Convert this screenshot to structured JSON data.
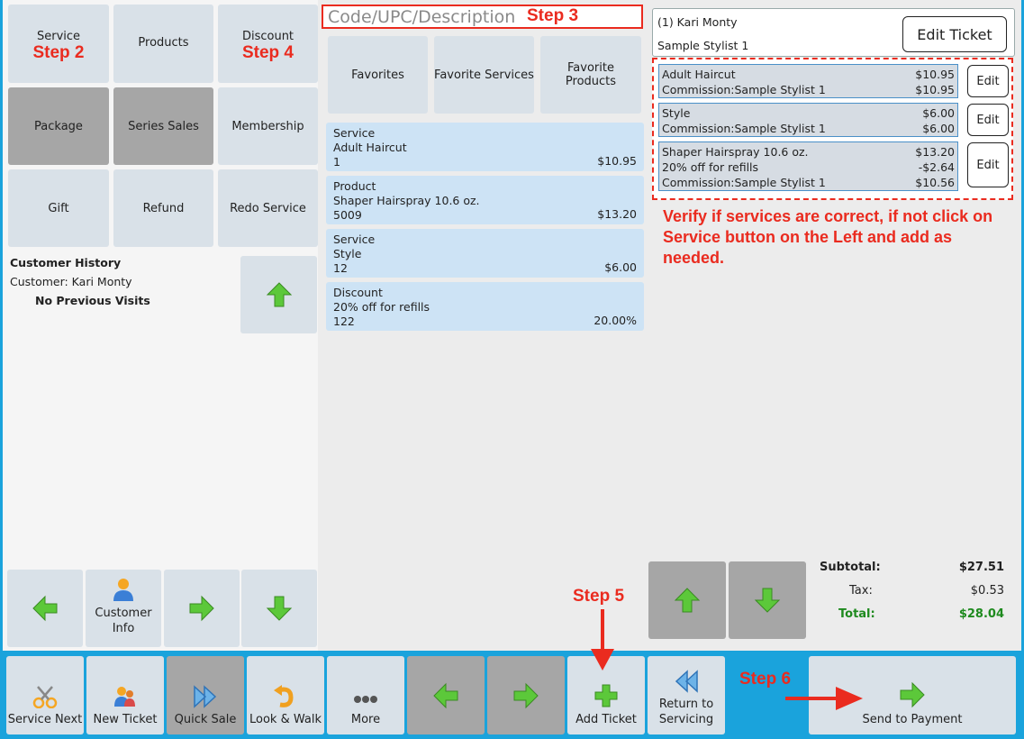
{
  "category_buttons": {
    "service": "Service",
    "service_step": "Step 2",
    "products": "Products",
    "discount": "Discount",
    "discount_step": "Step 4",
    "package": "Package",
    "series_sales": "Series Sales",
    "membership": "Membership",
    "gift": "Gift",
    "refund": "Refund",
    "redo_service": "Redo Service"
  },
  "customer_history": {
    "title": "Customer History",
    "customer": "Customer: Kari Monty",
    "visits": "No Previous Visits"
  },
  "left_nav": {
    "customer_info_line1": "Customer",
    "customer_info_line2": "Info"
  },
  "search": {
    "placeholder": "Code/UPC/Description",
    "step": "Step 3"
  },
  "favorites": {
    "favorites": "Favorites",
    "favorite_services": "Favorite Services",
    "favorite_products": "Favorite Products"
  },
  "items": [
    {
      "type": "Service",
      "name": "Adult Haircut",
      "code": "1",
      "price": "$10.95"
    },
    {
      "type": "Product",
      "name": "Shaper Hairspray 10.6 oz.",
      "code": "5009",
      "price": "$13.20"
    },
    {
      "type": "Service",
      "name": "Style",
      "code": "12",
      "price": "$6.00"
    },
    {
      "type": "Discount",
      "name": "20% off for refills",
      "code": "122",
      "price": "20.00%"
    }
  ],
  "ticket": {
    "customer": "(1) Kari Monty",
    "stylist": "Sample Stylist 1",
    "edit_ticket": "Edit Ticket",
    "edit_label": "Edit",
    "lines": [
      {
        "name": "Adult Haircut",
        "price": "$10.95",
        "commission": "Commission:Sample Stylist 1",
        "commission_amount": "$10.95"
      },
      {
        "name": "Style",
        "price": "$6.00",
        "commission": "Commission:Sample Stylist 1",
        "commission_amount": "$6.00"
      },
      {
        "name": "Shaper Hairspray 10.6 oz.",
        "price": "$13.20",
        "discount": "20% off for refills",
        "discount_amount": "-$2.64",
        "commission": "Commission:Sample Stylist 1",
        "commission_amount": "$10.56"
      }
    ]
  },
  "instruction": "Verify if services are correct, if not click on Service button on the Left and add as needed.",
  "totals": {
    "subtotal_label": "Subtotal:",
    "subtotal": "$27.51",
    "tax_label": "Tax:",
    "tax": "$0.53",
    "total_label": "Total:",
    "total": "$28.04"
  },
  "bottom_bar": {
    "service_next": "Service Next",
    "new_ticket": "New Ticket",
    "quick_sale": "Quick Sale",
    "look_walk": "Look & Walk",
    "more": "More",
    "add_ticket": "Add Ticket",
    "return_line1": "Return to",
    "return_line2": "Servicing",
    "send_to_payment": "Send to Payment",
    "step5": "Step 5",
    "step6": "Step 6"
  },
  "colors": {
    "accent_blue": "#1aa3dc",
    "annotation_red": "#ea2b1f",
    "total_green": "#1e8a1e",
    "arrow_green": "#5cc83a"
  }
}
